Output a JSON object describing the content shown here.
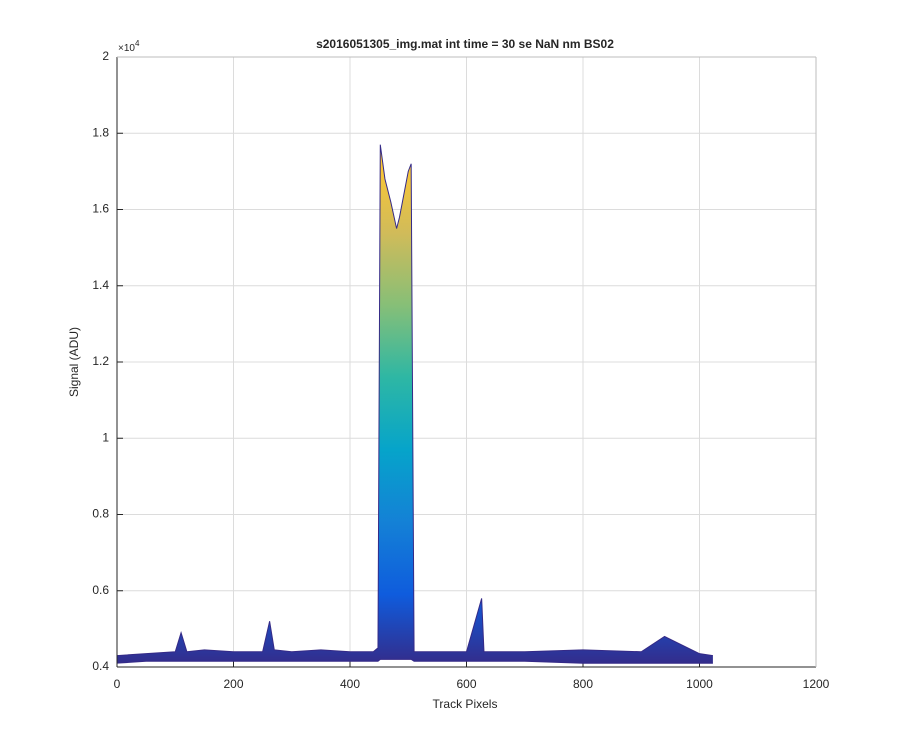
{
  "chart_data": {
    "type": "area-band",
    "title": "s2016051305_img.mat int time = 30 se  NaN nm BS02",
    "x_label": "Track Pixels",
    "y_label": "Signal (ADU)",
    "y_multiplier": {
      "base": "×10",
      "power": "4"
    },
    "x": [
      0,
      50,
      100,
      110,
      120,
      150,
      200,
      250,
      262,
      270,
      300,
      350,
      400,
      440,
      448,
      452,
      460,
      470,
      480,
      485,
      490,
      500,
      505,
      510,
      520,
      600,
      626,
      630,
      700,
      800,
      900,
      940,
      1000,
      1023
    ],
    "series": [
      {
        "values": [
          0.43,
          0.435,
          0.44,
          0.49,
          0.44,
          0.445,
          0.44,
          0.44,
          0.52,
          0.445,
          0.44,
          0.445,
          0.44,
          0.44,
          0.45,
          1.77,
          1.68,
          1.62,
          1.55,
          1.58,
          1.62,
          1.7,
          1.72,
          0.44,
          0.44,
          0.44,
          0.58,
          0.44,
          0.44,
          0.445,
          0.44,
          0.48,
          0.435,
          0.43
        ]
      },
      {
        "values": [
          0.41,
          0.415,
          0.415,
          0.415,
          0.415,
          0.415,
          0.415,
          0.415,
          0.415,
          0.415,
          0.415,
          0.415,
          0.415,
          0.415,
          0.415,
          0.42,
          0.42,
          0.42,
          0.42,
          0.42,
          0.42,
          0.42,
          0.42,
          0.415,
          0.415,
          0.415,
          0.415,
          0.415,
          0.415,
          0.41,
          0.41,
          0.41,
          0.41,
          0.41
        ]
      }
    ],
    "colormap": [
      "#352a87",
      "#0f5cdd",
      "#1481d6",
      "#06a4ca",
      "#2eb7a4",
      "#87bf77",
      "#d1bb59",
      "#fec832",
      "#f9fb0e"
    ],
    "xlim": [
      0,
      1200
    ],
    "xticks": [
      0,
      200,
      400,
      600,
      800,
      1000,
      1200
    ],
    "ylim": [
      0.4,
      2
    ],
    "yticks": [
      0.4,
      0.6,
      0.8,
      1,
      1.2,
      1.4,
      1.6,
      1.8,
      2
    ],
    "grid": true
  }
}
